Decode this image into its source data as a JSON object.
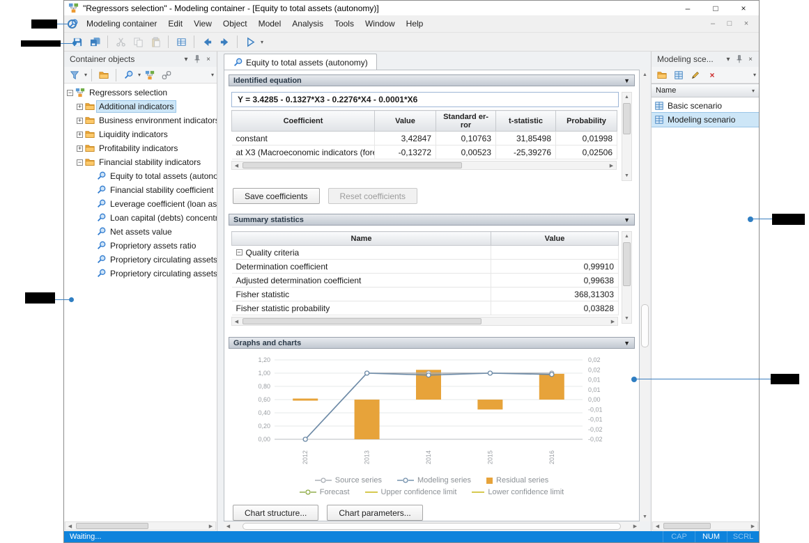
{
  "window": {
    "title": "\"Regressors selection\" - Modeling container - [Equity to total assets (autonomy)]",
    "minimize_label": "–",
    "maximize_label": "□",
    "close_label": "×"
  },
  "menu": {
    "items": [
      "Modeling container",
      "Edit",
      "View",
      "Object",
      "Model",
      "Analysis",
      "Tools",
      "Window",
      "Help"
    ],
    "mdi_minimize": "–",
    "mdi_restore": "□",
    "mdi_close": "×"
  },
  "left_panel": {
    "title": "Container objects",
    "tree": {
      "root": "Regressors selection",
      "folders": [
        {
          "label": "Additional indicators"
        },
        {
          "label": "Business environment indicators"
        },
        {
          "label": "Liquidity indicators"
        },
        {
          "label": "Profitability indicators"
        },
        {
          "label": "Financial stability indicators"
        }
      ],
      "children": [
        "Equity to total assets (autono",
        "Financial stability coefficient",
        "Leverage coefficient (loan ass",
        "Loan capital (debts) concentr",
        "Net assets value",
        "Proprietory assets ratio",
        "Proprietory circulating assets",
        "Proprietory circulating assets"
      ]
    }
  },
  "main": {
    "tab_label": "Equity to total assets (autonomy)",
    "equation_section": {
      "title": "Identified equation",
      "equation": "Y = 3.4285 - 0.1327*X3 - 0.2276*X4 - 0.0001*X6",
      "headers": [
        "Coefficient",
        "Value",
        "Standard er-\nror",
        "t-statistic",
        "Probability"
      ],
      "rows": [
        [
          "constant",
          "3,42847",
          "0,10763",
          "31,85498",
          "0,01998"
        ],
        [
          "at X3 (Macroeconomic indicators (fore-",
          "-0,13272",
          "0,00523",
          "-25,39276",
          "0,02506"
        ]
      ],
      "save_button": "Save coefficients",
      "reset_button": "Reset coefficients"
    },
    "summary_section": {
      "title": "Summary statistics",
      "name_header": "Name",
      "value_header": "Value",
      "group_label": "Quality criteria",
      "rows": [
        [
          "Determination coefficient",
          "0,99910"
        ],
        [
          "Adjusted determination coefficient",
          "0,99638"
        ],
        [
          "Fisher statistic",
          "368,31303"
        ],
        [
          "Fisher statistic probability",
          "0,03828"
        ]
      ]
    },
    "charts_section": {
      "title": "Graphs and charts",
      "structure_button": "Chart structure...",
      "parameters_button": "Chart parameters..."
    }
  },
  "chart_data": {
    "type": "line+bar",
    "x_labels": [
      "2012",
      "2013",
      "2014",
      "2015",
      "2016"
    ],
    "left_axis": {
      "min": 0,
      "max": 1.2,
      "ticks": [
        "1,20",
        "1,00",
        "0,80",
        "0,60",
        "0,40",
        "0,20",
        "0,00"
      ]
    },
    "right_axis": {
      "min": -0.02,
      "max": 0.02,
      "ticks": [
        "0,02",
        "0,02",
        "0,01",
        "0,01",
        "0,00",
        "-0,01",
        "-0,01",
        "-0,02",
        "-0,02"
      ]
    },
    "series": [
      {
        "name": "Source series",
        "type": "line",
        "axis": "left",
        "color": "#a6abb2",
        "values": [
          0.0,
          1.0,
          1.0,
          1.0,
          1.0
        ]
      },
      {
        "name": "Modeling series",
        "type": "line",
        "axis": "left",
        "color": "#6d8ba8",
        "values": [
          0.0,
          1.0,
          0.97,
          1.0,
          0.98
        ]
      },
      {
        "name": "Residual series",
        "type": "bar",
        "axis": "right",
        "color": "#e7a33a",
        "values": [
          0.0,
          -0.02,
          0.015,
          -0.005,
          0.013
        ]
      }
    ],
    "legend": [
      "Source series",
      "Modeling series",
      "Residual series",
      "Forecast",
      "Upper confidence limit",
      "Lower confidence limit"
    ],
    "colors": {
      "Source series": "#a6abb2",
      "Modeling series": "#6d8ba8",
      "Residual series": "#e7a33a",
      "Forecast": "#8aa83e",
      "Upper confidence limit": "#d6c94f",
      "Lower confidence limit": "#d6c94f"
    }
  },
  "right_panel": {
    "title": "Modeling sce...",
    "name_header": "Name",
    "items": [
      {
        "label": "Basic scenario"
      },
      {
        "label": "Modeling scenario"
      }
    ]
  },
  "status_bar": {
    "text": "Waiting...",
    "indicators": [
      "CAP",
      "NUM",
      "SCRL"
    ]
  },
  "colors": {
    "accent": "#2f7bd0",
    "selection": "#cde6f7",
    "bar_orange": "#e7a33a",
    "status_blue": "#0e83dc"
  }
}
